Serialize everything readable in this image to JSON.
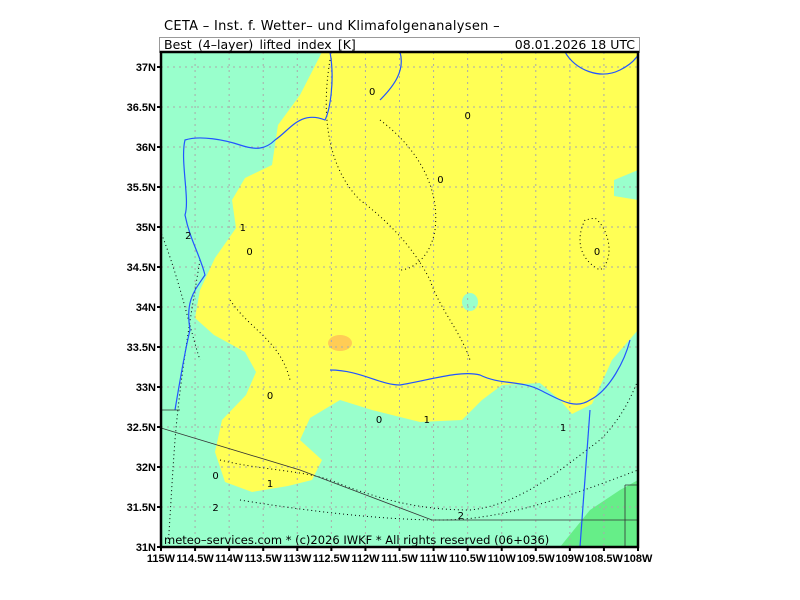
{
  "header": {
    "institution": "CETA – Inst. f. Wetter– und Klimafolgenanalysen –",
    "parameter": "Best_(4–layer)_lifted_index_[K]",
    "valid_time": "08.01.2026 18 UTC"
  },
  "footer": {
    "copyright": "meteo–services.com * (c)2026 IWKF * All rights reserved (06+036)"
  },
  "map": {
    "extent": {
      "lon": [
        -115,
        -108
      ],
      "lat": [
        31,
        37
      ]
    },
    "lon_labels": [
      "115W",
      "114.5W",
      "114W",
      "113.5W",
      "113W",
      "112.5W",
      "112W",
      "111.5W",
      "111W",
      "110.5W",
      "110W",
      "109.5W",
      "109W",
      "108.5W",
      "108W"
    ],
    "lat_labels": [
      "31N",
      "31.5N",
      "32N",
      "32.5N",
      "33N",
      "33.5N",
      "34N",
      "34.5N",
      "35N",
      "35.5N",
      "36N",
      "36.5N",
      "37N"
    ],
    "contour_labels": [
      {
        "v": "0",
        "lon": -111.9,
        "lat": 36.7
      },
      {
        "v": "0",
        "lon": -110.5,
        "lat": 36.4
      },
      {
        "v": "0",
        "lon": -110.9,
        "lat": 35.6
      },
      {
        "v": "0",
        "lon": -113.7,
        "lat": 34.7
      },
      {
        "v": "0",
        "lon": -108.6,
        "lat": 34.7
      },
      {
        "v": "0",
        "lon": -113.4,
        "lat": 32.9
      },
      {
        "v": "0",
        "lon": -111.8,
        "lat": 32.6
      },
      {
        "v": "0",
        "lon": -114.2,
        "lat": 31.9
      },
      {
        "v": "1",
        "lon": -113.8,
        "lat": 35.0
      },
      {
        "v": "1",
        "lon": -111.1,
        "lat": 32.6
      },
      {
        "v": "1",
        "lon": -113.4,
        "lat": 31.8
      },
      {
        "v": "1",
        "lon": -109.1,
        "lat": 32.5
      },
      {
        "v": "2",
        "lon": -114.6,
        "lat": 34.9
      },
      {
        "v": "2",
        "lon": -114.2,
        "lat": 31.5
      },
      {
        "v": "2",
        "lon": -110.6,
        "lat": 31.4
      }
    ],
    "colors": {
      "li_0_to_minus2": "#ffff55",
      "li_minus2_to_minus4": "#ffcc55",
      "li_0_to_4": "#99ffcc",
      "li_4_to_8": "#66ee88",
      "river": "#2255ff",
      "grid": "#aaaaaa"
    }
  }
}
